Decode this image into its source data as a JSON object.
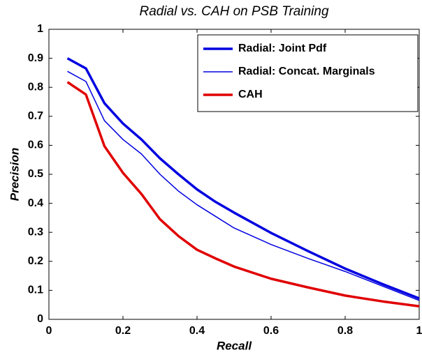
{
  "chart_data": {
    "type": "line",
    "title": "Radial vs. CAH on PSB Training",
    "x_label": "Recall",
    "y_label": "Precision",
    "x": [
      0.05,
      0.1,
      0.15,
      0.2,
      0.25,
      0.3,
      0.35,
      0.4,
      0.45,
      0.5,
      0.6,
      0.7,
      0.8,
      0.9,
      1.0
    ],
    "series": [
      {
        "name": "Radial: Joint Pdf",
        "color": "#0000e0",
        "linewidth": 3.5,
        "values": [
          0.9,
          0.865,
          0.745,
          0.675,
          0.62,
          0.555,
          0.5,
          0.448,
          0.405,
          0.368,
          0.298,
          0.235,
          0.175,
          0.122,
          0.072
        ]
      },
      {
        "name": "Radial: Concat. Marginals",
        "color": "#0000e0",
        "linewidth": 1.5,
        "values": [
          0.855,
          0.82,
          0.685,
          0.62,
          0.57,
          0.5,
          0.442,
          0.395,
          0.355,
          0.315,
          0.258,
          0.21,
          0.165,
          0.115,
          0.065
        ]
      },
      {
        "name": "CAH",
        "color": "#e00000",
        "linewidth": 3.5,
        "values": [
          0.818,
          0.775,
          0.597,
          0.505,
          0.432,
          0.345,
          0.287,
          0.24,
          0.21,
          0.182,
          0.14,
          0.11,
          0.082,
          0.062,
          0.045
        ]
      }
    ],
    "xlim": [
      0,
      1
    ],
    "xticks": [
      0,
      0.2,
      0.4,
      0.6,
      0.8,
      1
    ],
    "ylim": [
      0,
      1
    ],
    "yticks": [
      0,
      0.1,
      0.2,
      0.3,
      0.4,
      0.5,
      0.6,
      0.7,
      0.8,
      0.9,
      1
    ],
    "legend": "upper right"
  }
}
